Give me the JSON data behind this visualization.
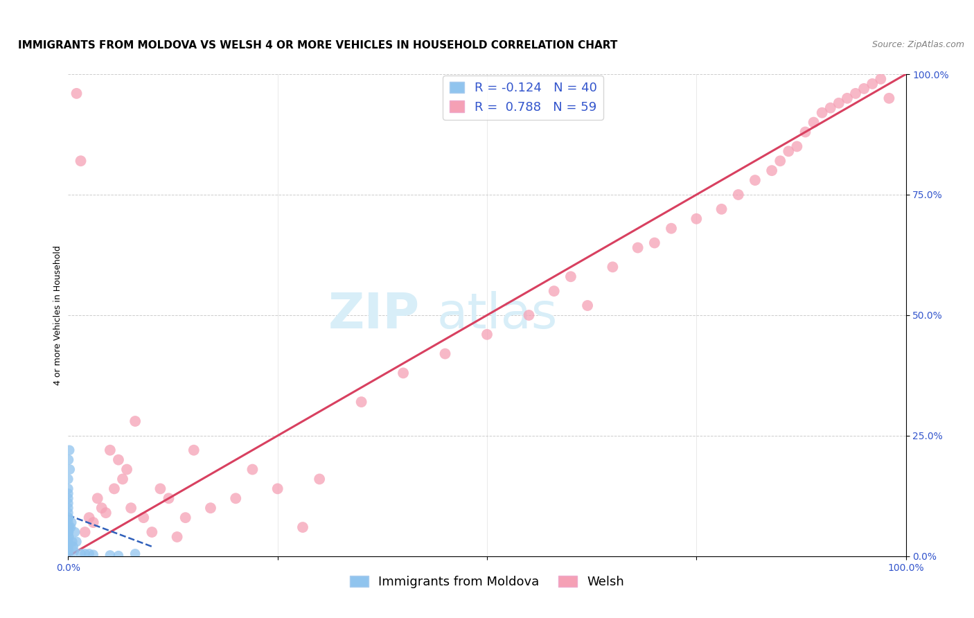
{
  "title": "IMMIGRANTS FROM MOLDOVA VS WELSH 4 OR MORE VEHICLES IN HOUSEHOLD CORRELATION CHART",
  "source": "Source: ZipAtlas.com",
  "ylabel": "4 or more Vehicles in Household",
  "ytick_labels": [
    "0.0%",
    "25.0%",
    "50.0%",
    "75.0%",
    "100.0%"
  ],
  "ytick_values": [
    0.0,
    25.0,
    50.0,
    75.0,
    100.0
  ],
  "watermark_zip": "ZIP",
  "watermark_atlas": "atlas",
  "legend_r1": "R = -0.124",
  "legend_n1": "N = 40",
  "legend_r2": "R =  0.788",
  "legend_n2": "N = 59",
  "legend_label1": "Immigrants from Moldova",
  "legend_label2": "Welsh",
  "blue_color": "#90C4EE",
  "pink_color": "#F5A0B5",
  "blue_line_color": "#3060BB",
  "pink_line_color": "#D84060",
  "text_blue": "#3355CC",
  "xlim": [
    0.0,
    100.0
  ],
  "ylim": [
    0.0,
    100.0
  ],
  "grid_color": "#CCCCCC",
  "background_color": "#FFFFFF",
  "title_fontsize": 11,
  "axis_tick_fontsize": 10,
  "legend_fontsize": 13,
  "watermark_fontsize_zip": 52,
  "watermark_fontsize_atlas": 52,
  "watermark_color": "#D8EEF8",
  "source_fontsize": 9,
  "moldova_x": [
    0.0,
    0.0,
    0.0,
    0.0,
    0.0,
    0.0,
    0.0,
    0.0,
    0.0,
    0.0,
    0.0,
    0.0,
    0.0,
    0.0,
    0.0,
    0.0,
    0.0,
    0.0,
    0.0,
    0.05,
    0.05,
    0.05,
    0.1,
    0.1,
    0.15,
    0.2,
    0.3,
    0.4,
    0.5,
    0.6,
    0.7,
    0.8,
    1.0,
    1.5,
    2.0,
    2.5,
    3.0,
    5.0,
    6.0,
    8.0
  ],
  "moldova_y": [
    0.5,
    1.0,
    1.5,
    2.0,
    2.5,
    3.0,
    4.0,
    5.0,
    5.5,
    6.0,
    7.0,
    8.0,
    9.0,
    10.0,
    11.0,
    12.0,
    13.0,
    14.0,
    16.0,
    5.0,
    8.0,
    20.0,
    4.0,
    6.0,
    22.0,
    18.0,
    6.0,
    7.0,
    3.0,
    2.0,
    1.0,
    5.0,
    3.0,
    0.5,
    0.5,
    0.5,
    0.3,
    0.2,
    0.1,
    0.5
  ],
  "welsh_x": [
    1.0,
    1.5,
    2.0,
    2.5,
    3.0,
    3.5,
    4.0,
    4.5,
    5.0,
    5.5,
    6.0,
    6.5,
    7.0,
    7.5,
    8.0,
    9.0,
    10.0,
    11.0,
    12.0,
    13.0,
    14.0,
    15.0,
    17.0,
    20.0,
    22.0,
    25.0,
    28.0,
    30.0,
    35.0,
    40.0,
    45.0,
    50.0,
    55.0,
    58.0,
    60.0,
    62.0,
    65.0,
    68.0,
    70.0,
    72.0,
    75.0,
    78.0,
    80.0,
    82.0,
    84.0,
    85.0,
    86.0,
    87.0,
    88.0,
    89.0,
    90.0,
    91.0,
    92.0,
    93.0,
    94.0,
    95.0,
    96.0,
    97.0,
    98.0
  ],
  "welsh_y": [
    96.0,
    82.0,
    5.0,
    8.0,
    7.0,
    12.0,
    10.0,
    9.0,
    22.0,
    14.0,
    20.0,
    16.0,
    18.0,
    10.0,
    28.0,
    8.0,
    5.0,
    14.0,
    12.0,
    4.0,
    8.0,
    22.0,
    10.0,
    12.0,
    18.0,
    14.0,
    6.0,
    16.0,
    32.0,
    38.0,
    42.0,
    46.0,
    50.0,
    55.0,
    58.0,
    52.0,
    60.0,
    64.0,
    65.0,
    68.0,
    70.0,
    72.0,
    75.0,
    78.0,
    80.0,
    82.0,
    84.0,
    85.0,
    88.0,
    90.0,
    92.0,
    93.0,
    94.0,
    95.0,
    96.0,
    97.0,
    98.0,
    99.0,
    95.0
  ],
  "moldova_trendline_x": [
    0.0,
    10.0
  ],
  "moldova_trendline_y": [
    8.5,
    2.0
  ],
  "welsh_trendline_x": [
    0.0,
    100.0
  ],
  "welsh_trendline_y": [
    0.0,
    100.0
  ]
}
